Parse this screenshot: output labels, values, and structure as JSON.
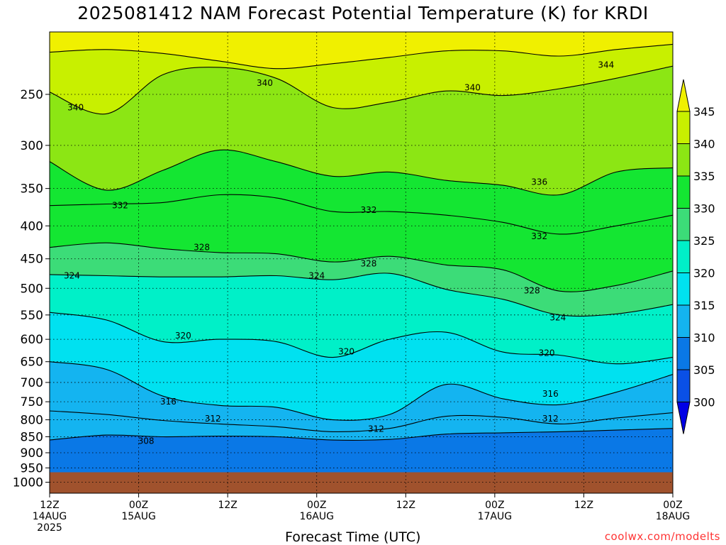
{
  "title": "2025081412 NAM Forecast Potential Temperature (K) for KRDI",
  "credit": "coolwx.com/modelts",
  "chart_data": {
    "type": "contour",
    "variable": "Potential Temperature (K)",
    "xlabel": "Forecast Time (UTC)",
    "ylabel": "",
    "y_scale": "log",
    "y_reversed": true,
    "ylim": [
      1040,
      200
    ],
    "x_range_hours": [
      0,
      84
    ],
    "y_ticks": [
      250,
      300,
      350,
      400,
      450,
      500,
      550,
      600,
      650,
      700,
      750,
      800,
      850,
      900,
      950,
      1000
    ],
    "x_ticks": [
      {
        "hour": 0,
        "lines": [
          "12Z",
          "14AUG",
          "2025"
        ]
      },
      {
        "hour": 12,
        "lines": [
          "00Z",
          "15AUG"
        ]
      },
      {
        "hour": 24,
        "lines": [
          "12Z"
        ]
      },
      {
        "hour": 36,
        "lines": [
          "00Z",
          "16AUG"
        ]
      },
      {
        "hour": 48,
        "lines": [
          "12Z"
        ]
      },
      {
        "hour": 60,
        "lines": [
          "00Z",
          "17AUG"
        ]
      },
      {
        "hour": 72,
        "lines": [
          "12Z"
        ]
      },
      {
        "hour": 84,
        "lines": [
          "00Z",
          "18AUG"
        ]
      }
    ],
    "grid": "dotted",
    "below_ground_pressure": 965,
    "colorbar": {
      "levels": [
        300,
        305,
        310,
        315,
        320,
        325,
        330,
        335,
        340,
        345
      ],
      "labels": [
        "300",
        "305",
        "310",
        "315",
        "320",
        "325",
        "330",
        "335",
        "340",
        "345"
      ],
      "colors": [
        "#0000e6",
        "#0a50e6",
        "#0a78e6",
        "#14b4f0",
        "#00e1f0",
        "#00f0c8",
        "#3cdc78",
        "#14e632",
        "#8ce614",
        "#c8f000",
        "#f0f000"
      ],
      "extends": "both"
    },
    "series": [
      {
        "theta": 344,
        "p": [
          215,
          213,
          216,
          222,
          228,
          224,
          219,
          214,
          214,
          218,
          213,
          209
        ]
      },
      {
        "theta": 340,
        "p": [
          248,
          268,
          233,
          227,
          236,
          262,
          257,
          247,
          251,
          245,
          236,
          226
        ]
      },
      {
        "theta": 336,
        "p": [
          318,
          352,
          328,
          305,
          318,
          335,
          330,
          340,
          346,
          358,
          330,
          325
        ]
      },
      {
        "theta": 332,
        "p": [
          372,
          370,
          368,
          358,
          362,
          380,
          380,
          385,
          395,
          412,
          400,
          385
        ]
      },
      {
        "theta": 328,
        "p": [
          432,
          425,
          434,
          440,
          442,
          455,
          446,
          460,
          468,
          505,
          495,
          470
        ]
      },
      {
        "theta": 324,
        "p": [
          476,
          478,
          480,
          480,
          478,
          485,
          474,
          502,
          520,
          550,
          548,
          530
        ]
      },
      {
        "theta": 320,
        "p": [
          545,
          560,
          605,
          600,
          605,
          640,
          600,
          585,
          628,
          635,
          655,
          640
        ]
      },
      {
        "theta": 316,
        "p": [
          650,
          668,
          735,
          760,
          765,
          800,
          785,
          705,
          742,
          758,
          725,
          680
        ]
      },
      {
        "theta": 312,
        "p": [
          775,
          785,
          802,
          812,
          820,
          835,
          825,
          790,
          793,
          812,
          795,
          780
        ]
      },
      {
        "theta": 308,
        "p": [
          860,
          845,
          850,
          848,
          850,
          860,
          858,
          842,
          838,
          835,
          830,
          825
        ]
      }
    ],
    "contour_labels": [
      {
        "text": "340",
        "hour": 29,
        "p": 240
      },
      {
        "text": "340",
        "hour": 3.5,
        "p": 262
      },
      {
        "text": "340",
        "hour": 57,
        "p": 244
      },
      {
        "text": "344",
        "hour": 75,
        "p": 225
      },
      {
        "text": "336",
        "hour": 66,
        "p": 342
      },
      {
        "text": "332",
        "hour": 9.5,
        "p": 372
      },
      {
        "text": "332",
        "hour": 43,
        "p": 378
      },
      {
        "text": "332",
        "hour": 66,
        "p": 415
      },
      {
        "text": "328",
        "hour": 20.5,
        "p": 432
      },
      {
        "text": "328",
        "hour": 43,
        "p": 458
      },
      {
        "text": "328",
        "hour": 65,
        "p": 504
      },
      {
        "text": "324",
        "hour": 3,
        "p": 478
      },
      {
        "text": "324",
        "hour": 36,
        "p": 478
      },
      {
        "text": "324",
        "hour": 68.5,
        "p": 555
      },
      {
        "text": "320",
        "hour": 18,
        "p": 592
      },
      {
        "text": "320",
        "hour": 40,
        "p": 627
      },
      {
        "text": "320",
        "hour": 67,
        "p": 630
      },
      {
        "text": "316",
        "hour": 16,
        "p": 750
      },
      {
        "text": "316",
        "hour": 67.5,
        "p": 729
      },
      {
        "text": "312",
        "hour": 22,
        "p": 797
      },
      {
        "text": "312",
        "hour": 44,
        "p": 827
      },
      {
        "text": "312",
        "hour": 67.5,
        "p": 797
      },
      {
        "text": "308",
        "hour": 13,
        "p": 863
      }
    ]
  }
}
